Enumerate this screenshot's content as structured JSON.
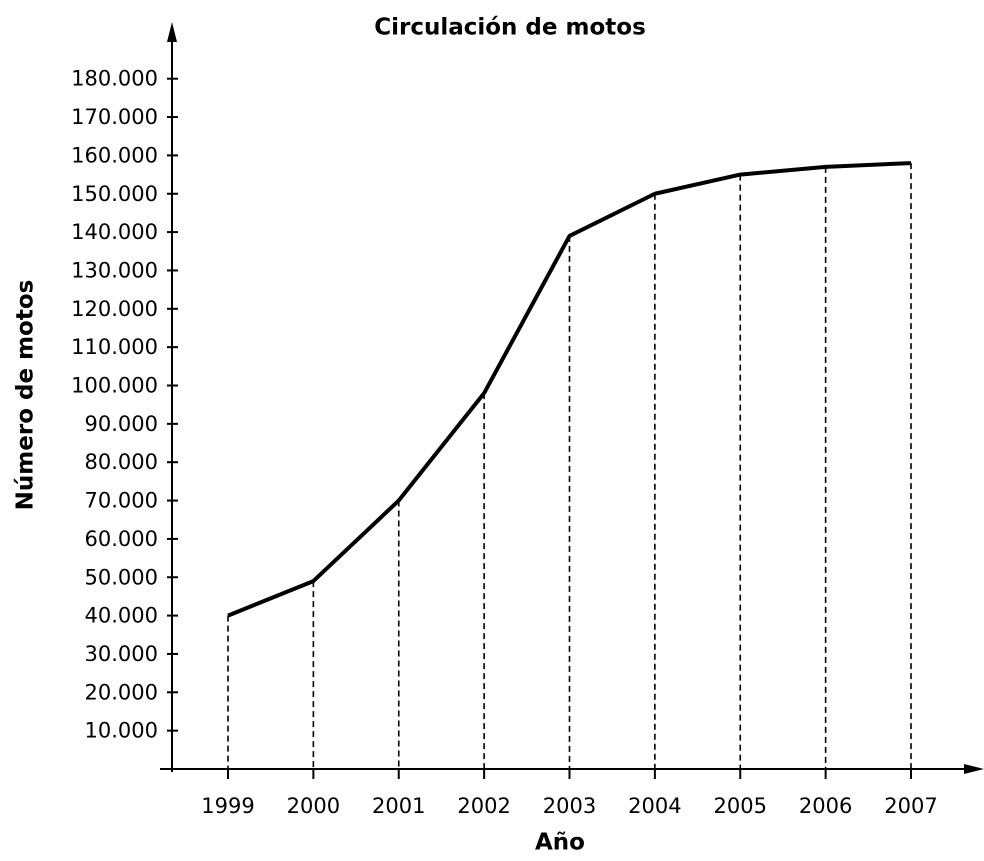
{
  "chart_data": {
    "type": "line",
    "title": "Circulación de motos",
    "x_label": "Año",
    "y_label": "Número de motos",
    "categories": [
      "1999",
      "2000",
      "2001",
      "2002",
      "2003",
      "2004",
      "2005",
      "2006",
      "2007"
    ],
    "series": [
      {
        "name": "Número de motos",
        "color": "#000000",
        "values": [
          40000,
          49000,
          70000,
          98000,
          139000,
          150000,
          155000,
          157000,
          158000
        ]
      }
    ],
    "ylim": [
      0,
      190000
    ],
    "yticks": [
      {
        "value": 10000,
        "label": "10.000"
      },
      {
        "value": 20000,
        "label": "20.000"
      },
      {
        "value": 30000,
        "label": "30.000"
      },
      {
        "value": 40000,
        "label": "40.000"
      },
      {
        "value": 50000,
        "label": "50.000"
      },
      {
        "value": 60000,
        "label": "60.000"
      },
      {
        "value": 70000,
        "label": "70.000"
      },
      {
        "value": 80000,
        "label": "80.000"
      },
      {
        "value": 90000,
        "label": "90.000"
      },
      {
        "value": 100000,
        "label": "100.000"
      },
      {
        "value": 110000,
        "label": "110.000"
      },
      {
        "value": 120000,
        "label": "120.000"
      },
      {
        "value": 130000,
        "label": "130.000"
      },
      {
        "value": 140000,
        "label": "140.000"
      },
      {
        "value": 150000,
        "label": "150.000"
      },
      {
        "value": 160000,
        "label": "160.000"
      },
      {
        "value": 170000,
        "label": "170.000"
      },
      {
        "value": 180000,
        "label": "180.000"
      }
    ],
    "grid": false
  }
}
